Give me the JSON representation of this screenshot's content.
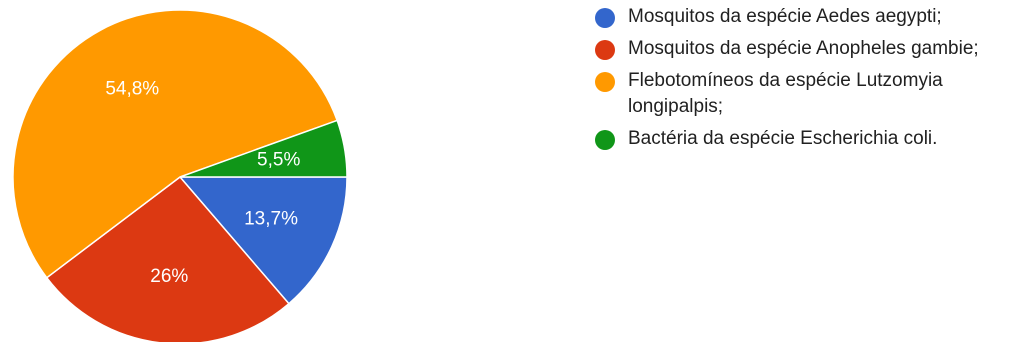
{
  "chart_data": {
    "type": "pie",
    "slices": [
      {
        "label": "Mosquitos da espécie Aedes aegypti;",
        "value": 13.7,
        "display": "13,7%",
        "color": "#3366cc"
      },
      {
        "label": "Mosquitos da espécie Anopheles gambie;",
        "value": 26,
        "display": "26%",
        "color": "#dc3912"
      },
      {
        "label": "Flebotomíneos da espécie Lutzomyia longipalpis;",
        "value": 54.8,
        "display": "54,8%",
        "color": "#ff9900"
      },
      {
        "label": "Bactéria da espécie Escherichia coli.",
        "value": 5.5,
        "display": "5,5%",
        "color": "#109618"
      }
    ],
    "start": "3 o'clock, clockwise",
    "legend_position": "right"
  }
}
